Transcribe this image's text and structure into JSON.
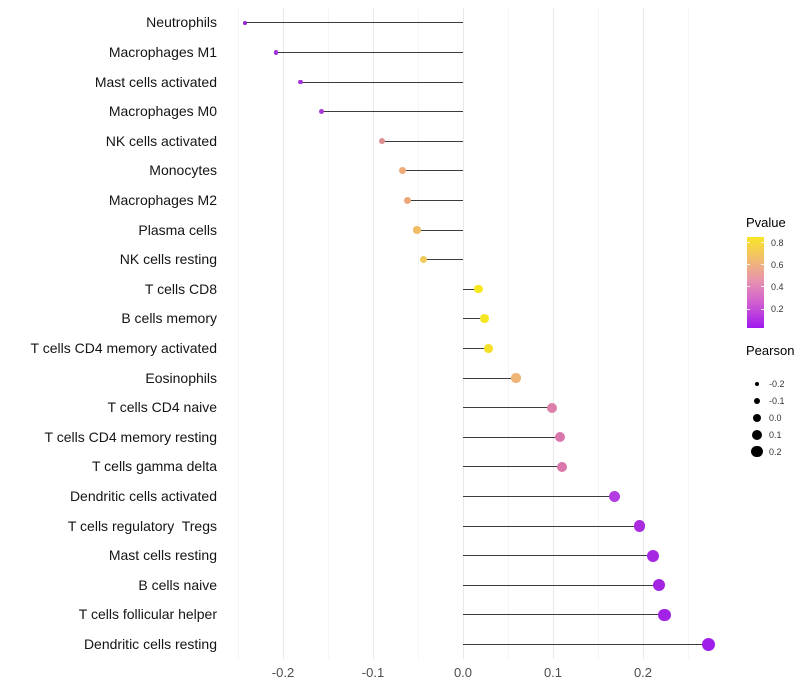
{
  "chart_data": {
    "type": "lollipop",
    "orientation": "horizontal",
    "grid": "on",
    "legend_position": "right",
    "x_axis": {
      "tick_values": [
        -0.2,
        -0.1,
        0.0,
        0.1,
        0.2
      ],
      "tick_labels": [
        "-0.2",
        "-0.1",
        "0.0",
        "0.1",
        "0.2"
      ],
      "minor_gridlines": [
        -0.25,
        -0.15,
        -0.05,
        0.05,
        0.15,
        0.25
      ],
      "range": [
        -0.268,
        0.297
      ]
    },
    "rows": [
      {
        "label": "Neutrophils",
        "pearson": -0.242,
        "pvalue": 0.06,
        "color": "#9227d4"
      },
      {
        "label": "Macrophages M1",
        "pearson": -0.208,
        "pvalue": 0.09,
        "color": "#a233d6"
      },
      {
        "label": "Mast cells activated",
        "pearson": -0.181,
        "pvalue": 0.1,
        "color": "#a434d9"
      },
      {
        "label": "Macrophages M0",
        "pearson": -0.157,
        "pvalue": 0.12,
        "color": "#a83ad4"
      },
      {
        "label": "NK cells activated",
        "pearson": -0.09,
        "pvalue": 0.5,
        "color": "#dd8f92"
      },
      {
        "label": "Monocytes",
        "pearson": -0.067,
        "pvalue": 0.58,
        "color": "#efaa78"
      },
      {
        "label": "Macrophages M2",
        "pearson": -0.062,
        "pvalue": 0.58,
        "color": "#eda878"
      },
      {
        "label": "Plasma cells",
        "pearson": -0.051,
        "pvalue": 0.65,
        "color": "#f0bc64"
      },
      {
        "label": "NK cells resting",
        "pearson": -0.044,
        "pvalue": 0.68,
        "color": "#f2c95b"
      },
      {
        "label": "T cells CD8",
        "pearson": 0.017,
        "pvalue": 0.82,
        "color": "#f6e81c"
      },
      {
        "label": "B cells memory",
        "pearson": 0.024,
        "pvalue": 0.82,
        "color": "#f5e523"
      },
      {
        "label": "T cells CD4 memory activated",
        "pearson": 0.028,
        "pvalue": 0.8,
        "color": "#f4e026"
      },
      {
        "label": "Eosinophils",
        "pearson": 0.059,
        "pvalue": 0.62,
        "color": "#efb476"
      },
      {
        "label": "T cells CD4 naive",
        "pearson": 0.099,
        "pvalue": 0.44,
        "color": "#dc7fa9"
      },
      {
        "label": "T cells CD4 memory resting",
        "pearson": 0.108,
        "pvalue": 0.42,
        "color": "#d977ac"
      },
      {
        "label": "T cells gamma delta",
        "pearson": 0.11,
        "pvalue": 0.42,
        "color": "#d977ac"
      },
      {
        "label": "Dendritic cells activated",
        "pearson": 0.168,
        "pvalue": 0.15,
        "color": "#b23be2"
      },
      {
        "label": "T cells regulatory  Tregs",
        "pearson": 0.196,
        "pvalue": 0.11,
        "color": "#aa2cdf"
      },
      {
        "label": "Mast cells resting",
        "pearson": 0.211,
        "pvalue": 0.09,
        "color": "#a628e2"
      },
      {
        "label": "B cells naive",
        "pearson": 0.218,
        "pvalue": 0.08,
        "color": "#a424e4"
      },
      {
        "label": "T cells follicular helper",
        "pearson": 0.224,
        "pvalue": 0.07,
        "color": "#a222e6"
      },
      {
        "label": "Dendritic cells resting",
        "pearson": 0.273,
        "pvalue": 0.05,
        "color": "#a01ee9"
      }
    ],
    "legends": {
      "pvalue": {
        "title": "Pvalue",
        "tick_values": [
          0.8,
          0.6,
          0.4,
          0.2
        ],
        "tick_labels": [
          "0.8",
          "0.6",
          "0.4",
          "0.2"
        ],
        "bar_range": [
          0.85,
          0.03
        ],
        "gradient": [
          "#f8e525",
          "#f3c169",
          "#e795ac",
          "#d25fd0",
          "#9e19ee"
        ]
      },
      "pearson": {
        "title": "Pearson",
        "item_values": [
          -0.2,
          -0.1,
          0.0,
          0.1,
          0.2
        ],
        "item_labels": [
          "-0.2",
          "-0.1",
          "0.0",
          "0.1",
          "0.2"
        ],
        "dot_color": "#000000"
      }
    },
    "colors": {
      "background": "#ffffff",
      "stem": "#3c3c3c",
      "grid_major": "#e9e9e9",
      "grid_minor": "#f5f5f5",
      "axis_text": "#4d4d4d",
      "label_text": "#141414"
    }
  }
}
